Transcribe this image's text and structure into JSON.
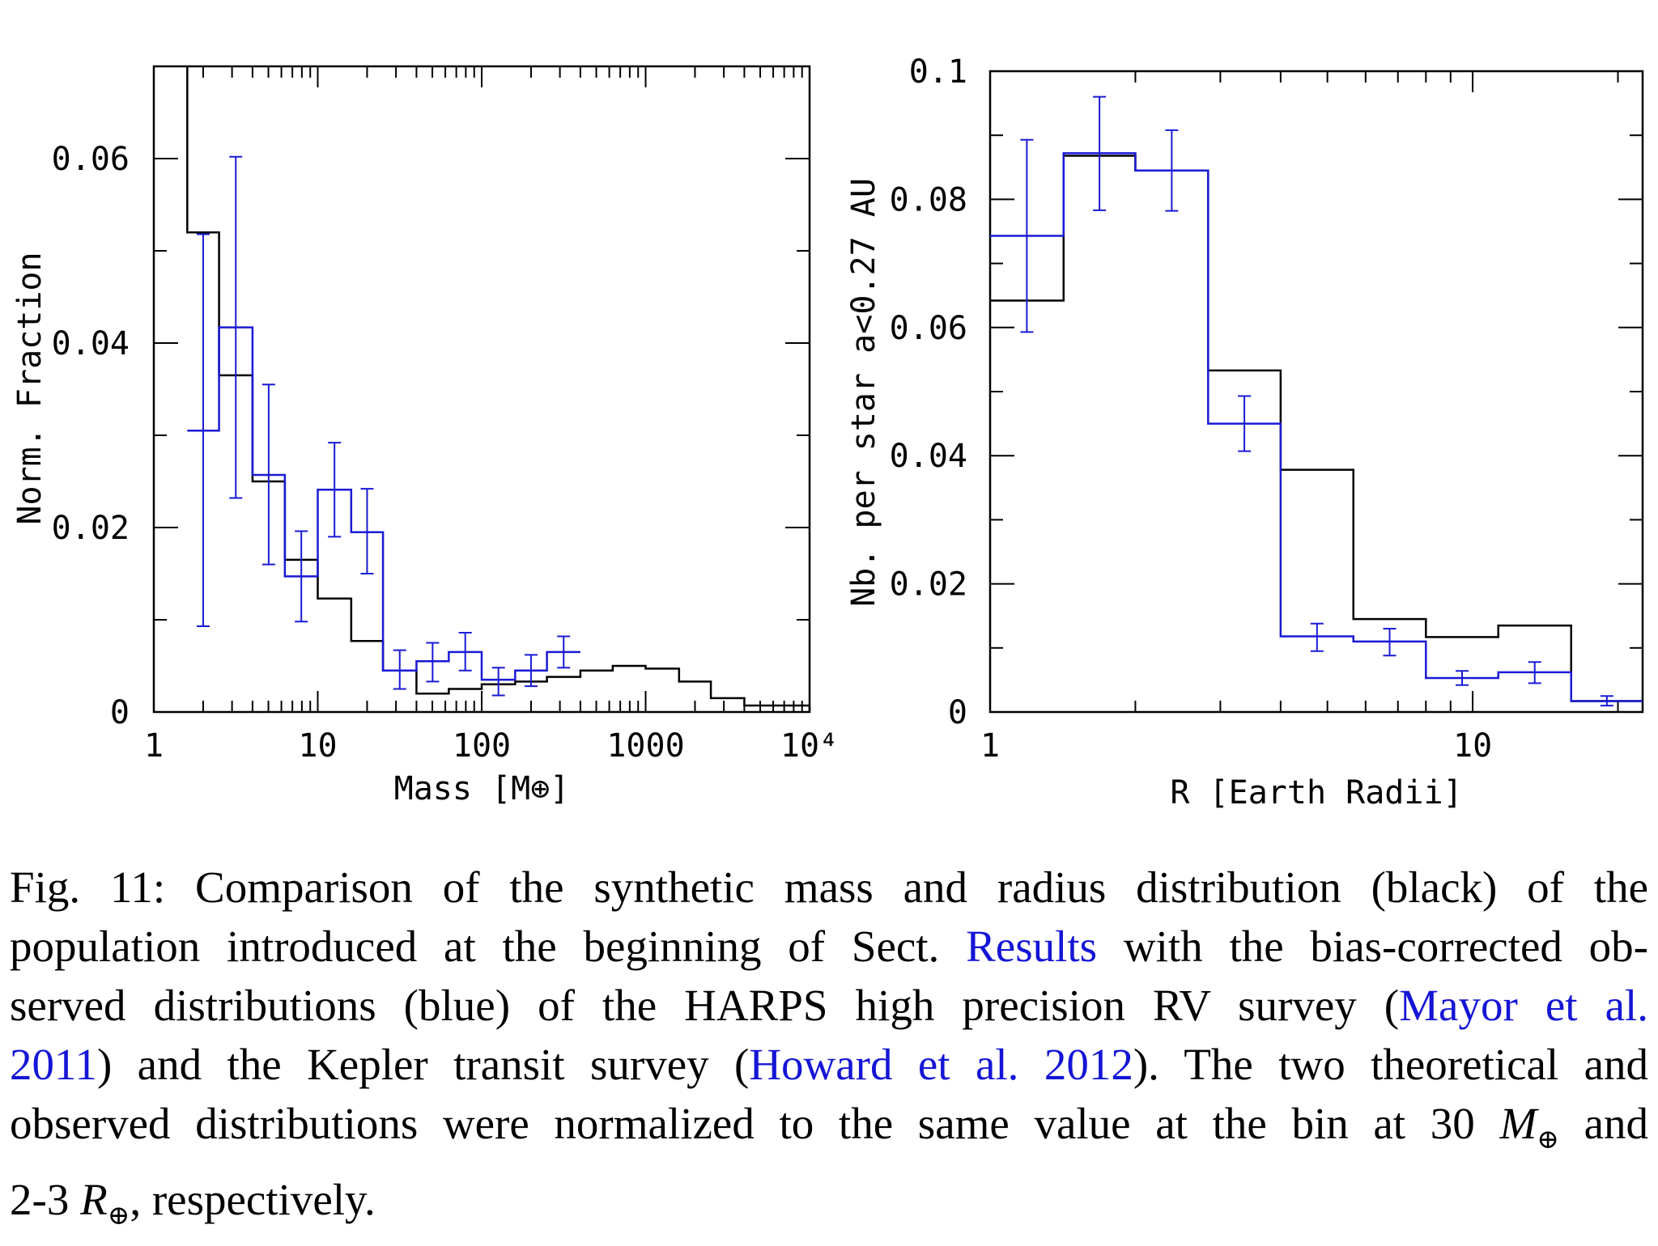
{
  "chart_data": [
    {
      "type": "histogram",
      "xscale": "log",
      "xlim": [
        1,
        10000
      ],
      "ylim": [
        0,
        0.07
      ],
      "xlabel": "Mass [M⊕]",
      "ylabel": "Norm. Fraction",
      "xtick_labels": [
        "1",
        "10",
        "100",
        "1000",
        "10⁴"
      ],
      "ytick_labels": [
        "0",
        "0.02",
        "0.04",
        "0.06"
      ],
      "series": [
        {
          "color": "#000000",
          "style": "step",
          "bin_edges": [
            1.6,
            2.5,
            4.0,
            6.3,
            10,
            16,
            25,
            40,
            63,
            100,
            160,
            250,
            400,
            630,
            1000,
            1600,
            2500,
            4000,
            6300,
            10000
          ],
          "values": [
            0.052,
            0.0365,
            0.025,
            0.0165,
            0.0123,
            0.0077,
            0.0045,
            0.002,
            0.0025,
            0.003,
            0.0033,
            0.0038,
            0.0045,
            0.005,
            0.0047,
            0.0033,
            0.0015,
            0.0007,
            0.0007
          ]
        },
        {
          "color": "#1a1ad6",
          "style": "step",
          "bin_edges": [
            1.6,
            2.5,
            4.0,
            6.3,
            10,
            16,
            25,
            40,
            63,
            100,
            160,
            250,
            400
          ],
          "values": [
            0.0305,
            0.0417,
            0.0257,
            0.0147,
            0.0241,
            0.0195,
            0.0045,
            0.0055,
            0.0065,
            0.0035,
            0.0045,
            0.0065
          ],
          "errors_low": [
            0.0093,
            0.0232,
            0.016,
            0.0098,
            0.019,
            0.015,
            0.0025,
            0.0033,
            0.0045,
            0.0018,
            0.0028,
            0.0048
          ],
          "errors_high": [
            0.0518,
            0.0602,
            0.0355,
            0.0196,
            0.0292,
            0.0242,
            0.0067,
            0.0075,
            0.0086,
            0.0048,
            0.0062,
            0.0082
          ]
        }
      ]
    },
    {
      "type": "histogram",
      "xscale": "log",
      "xlim": [
        1,
        22.5
      ],
      "ylim": [
        0,
        0.1
      ],
      "xlabel": "R [Earth Radii]",
      "ylabel": "Nb. per star a<0.27 AU",
      "xtick_labels": [
        "1",
        "10"
      ],
      "ytick_labels": [
        "0",
        "0.02",
        "0.04",
        "0.06",
        "0.08",
        "0.1"
      ],
      "series": [
        {
          "color": "#000000",
          "style": "step",
          "bin_edges": [
            1.0,
            1.42,
            2.0,
            2.83,
            4.0,
            5.66,
            8.0,
            11.3,
            16.0,
            22.5
          ],
          "values": [
            0.0642,
            0.0868,
            0.0845,
            0.0533,
            0.0378,
            0.0145,
            0.0117,
            0.0135,
            0.0017
          ]
        },
        {
          "color": "#1a1ad6",
          "style": "step",
          "bin_edges": [
            1.0,
            1.42,
            2.0,
            2.83,
            4.0,
            5.66,
            8.0,
            11.3,
            16.0,
            22.5
          ],
          "values": [
            0.0743,
            0.0872,
            0.0845,
            0.045,
            0.0118,
            0.011,
            0.0053,
            0.0062,
            0.0017
          ],
          "errors_low": [
            0.0593,
            0.0783,
            0.0782,
            0.0407,
            0.0095,
            0.0088,
            0.0042,
            0.0045,
            0.001
          ],
          "errors_high": [
            0.0893,
            0.096,
            0.0908,
            0.0493,
            0.0138,
            0.013,
            0.0064,
            0.0078,
            0.0025
          ]
        }
      ]
    }
  ],
  "caption": {
    "lines": [
      [
        "Fig. 11: Comparison of the synthetic mass and radius distribution (black) of the"
      ],
      [
        "population introduced at the beginning of Sect. ",
        {
          "link": "Results"
        },
        " with the bias-corrected ob-"
      ],
      [
        "served distributions (blue) of the HARPS high precision RV survey (",
        {
          "link": "Mayor et al."
        }
      ],
      [
        {
          "link": "2011"
        },
        ") and the Kepler transit survey (",
        {
          "link": "Howard et al. 2012"
        },
        "). The two theoretical and"
      ],
      [
        "observed distributions were normalized to the same value at the bin at 30 ",
        {
          "math": "M",
          "sub": "⊕"
        },
        " and"
      ],
      [
        "2-3 ",
        {
          "math": "R",
          "sub": "⊕"
        },
        ", respectively."
      ]
    ]
  }
}
